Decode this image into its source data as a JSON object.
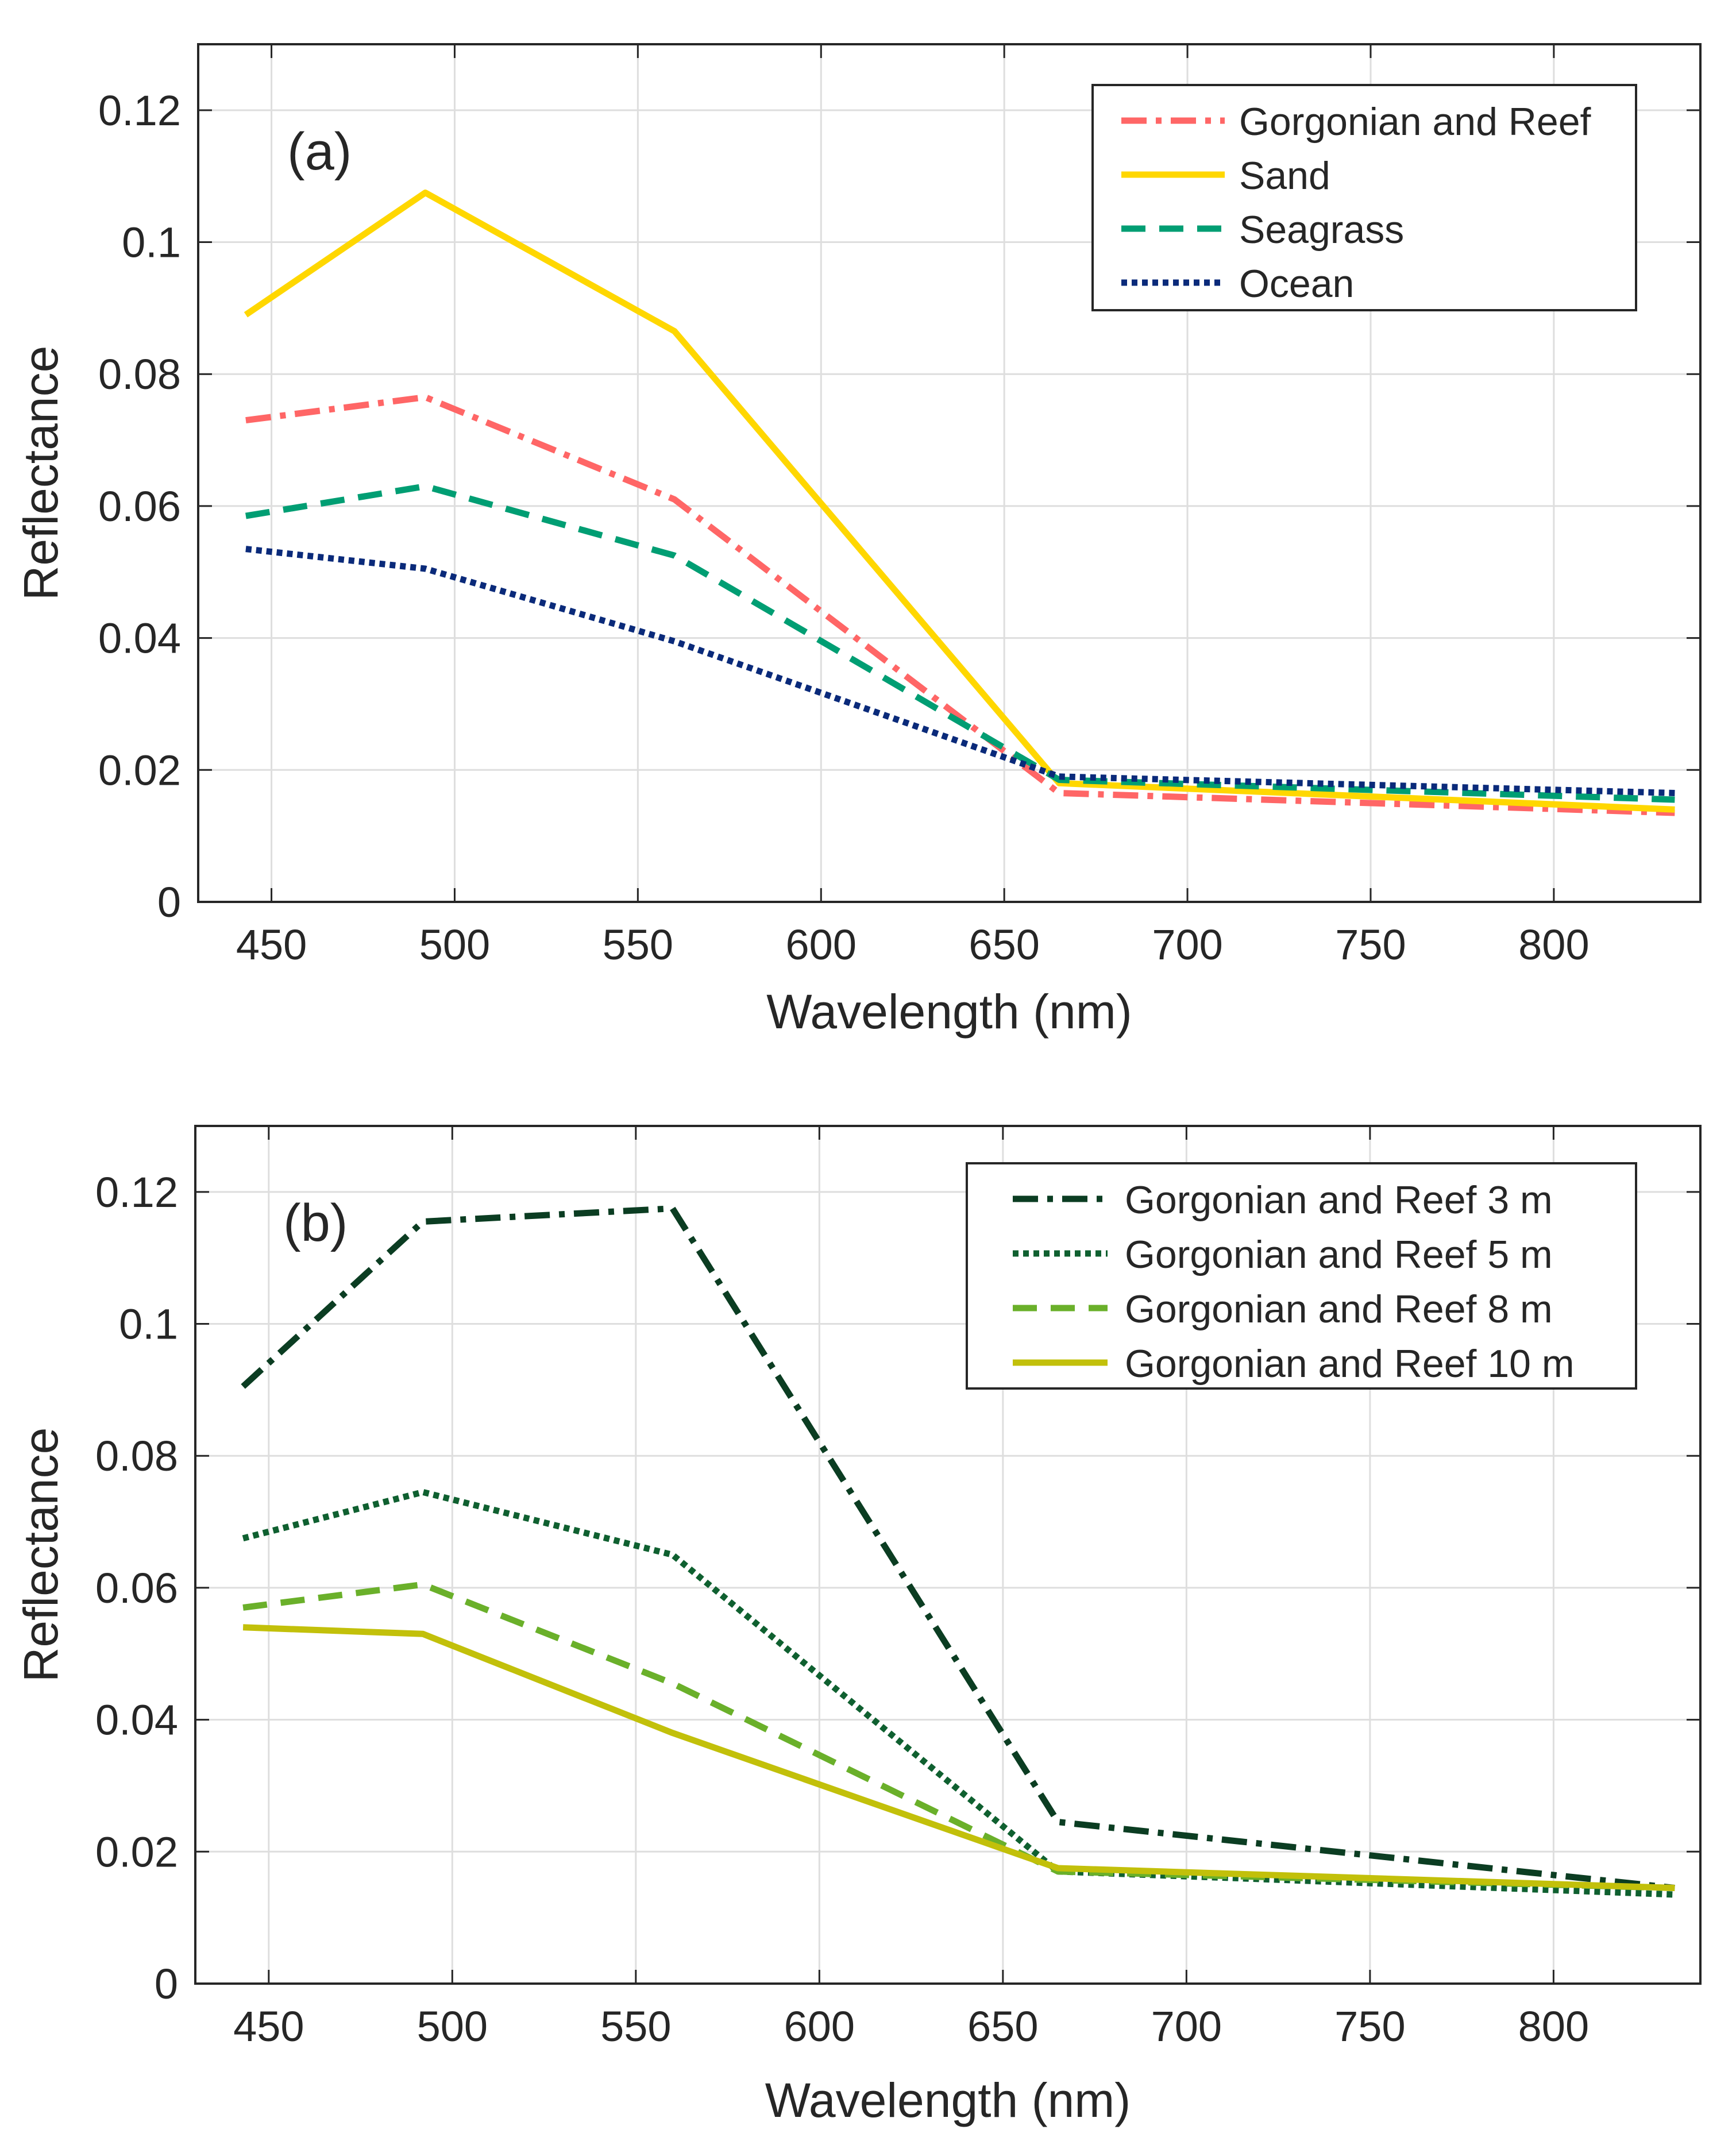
{
  "chart_data": [
    {
      "type": "line",
      "panel_label": "(a)",
      "xlabel": "Wavelength (nm)",
      "ylabel": "Reflectance",
      "xlim": [
        430,
        840
      ],
      "ylim": [
        0,
        0.13
      ],
      "xticks": [
        450,
        500,
        550,
        600,
        650,
        700,
        750,
        800
      ],
      "xtick_labels": [
        "450",
        "500",
        "550",
        "600",
        "650",
        "700",
        "750",
        "800"
      ],
      "yticks": [
        0,
        0.02,
        0.04,
        0.06,
        0.08,
        0.1,
        0.12
      ],
      "ytick_labels": [
        "0",
        "0.02",
        "0.04",
        "0.06",
        "0.08",
        "0.1",
        "0.12"
      ],
      "grid": true,
      "legend_position": "top-right",
      "x": [
        443,
        492,
        560,
        665,
        833
      ],
      "series": [
        {
          "name": "Gorgonian and Reef",
          "values": [
            0.073,
            0.0765,
            0.061,
            0.0165,
            0.0135
          ],
          "color": "#ff6666",
          "style": "dashdot"
        },
        {
          "name": "Sand",
          "values": [
            0.089,
            0.1075,
            0.0865,
            0.018,
            0.014
          ],
          "color": "#ffd700",
          "style": "solid"
        },
        {
          "name": "Seagrass",
          "values": [
            0.0585,
            0.063,
            0.0525,
            0.0185,
            0.0155
          ],
          "color": "#009e73",
          "style": "dashed"
        },
        {
          "name": "Ocean",
          "values": [
            0.0535,
            0.0505,
            0.0395,
            0.019,
            0.0165
          ],
          "color": "#0a2a7a",
          "style": "dotted"
        }
      ]
    },
    {
      "type": "line",
      "panel_label": "(b)",
      "xlabel": "Wavelength (nm)",
      "ylabel": "Reflectance",
      "xlim": [
        430,
        840
      ],
      "ylim": [
        0,
        0.13
      ],
      "xticks": [
        450,
        500,
        550,
        600,
        650,
        700,
        750,
        800
      ],
      "xtick_labels": [
        "450",
        "500",
        "550",
        "600",
        "650",
        "700",
        "750",
        "800"
      ],
      "yticks": [
        0,
        0.02,
        0.04,
        0.06,
        0.08,
        0.1,
        0.12
      ],
      "ytick_labels": [
        "0",
        "0.02",
        "0.04",
        "0.06",
        "0.08",
        "0.1",
        "0.12"
      ],
      "grid": true,
      "legend_position": "top-right",
      "x": [
        443,
        492,
        560,
        665,
        833
      ],
      "series": [
        {
          "name": "Gorgonian and Reef 3 m",
          "values": [
            0.0905,
            0.1155,
            0.1175,
            0.0245,
            0.0145
          ],
          "color": "#0b3d22",
          "style": "dashdot"
        },
        {
          "name": "Gorgonian and Reef 5 m",
          "values": [
            0.0675,
            0.0745,
            0.065,
            0.017,
            0.0135
          ],
          "color": "#0f6030",
          "style": "dotted"
        },
        {
          "name": "Gorgonian and Reef 8 m",
          "values": [
            0.057,
            0.0605,
            0.0455,
            0.017,
            0.0145
          ],
          "color": "#6ab02a",
          "style": "dashed"
        },
        {
          "name": "Gorgonian and Reef 10 m",
          "values": [
            0.054,
            0.053,
            0.038,
            0.0175,
            0.0145
          ],
          "color": "#c2c00a",
          "style": "solid"
        }
      ]
    }
  ]
}
